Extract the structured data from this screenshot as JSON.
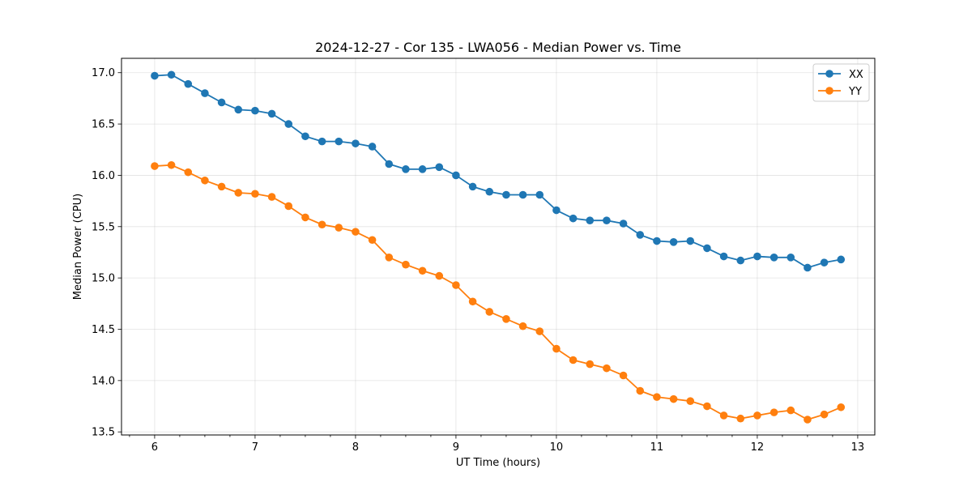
{
  "chart_data": {
    "type": "line",
    "title": "2024-12-27 - Cor 135 - LWA056 - Median Power vs. Time",
    "xlabel": "UT Time (hours)",
    "ylabel": "Median Power (CPU)",
    "xlim": [
      5.67,
      13.17
    ],
    "ylim": [
      13.47,
      17.14
    ],
    "xticks": [
      6,
      7,
      8,
      9,
      10,
      11,
      12,
      13
    ],
    "xtick_labels": [
      "6",
      "7",
      "8",
      "9",
      "10",
      "11",
      "12",
      "13"
    ],
    "xminor_step": 0.25,
    "yticks": [
      13.5,
      14.0,
      14.5,
      15.0,
      15.5,
      16.0,
      16.5,
      17.0
    ],
    "ytick_labels": [
      "13.5",
      "14.0",
      "14.5",
      "15.0",
      "15.5",
      "16.0",
      "16.5",
      "17.0"
    ],
    "grid": true,
    "legend_position": "top-right",
    "x": [
      6.0,
      6.1667,
      6.3333,
      6.5,
      6.6667,
      6.8333,
      7.0,
      7.1667,
      7.3333,
      7.5,
      7.6667,
      7.8333,
      8.0,
      8.1667,
      8.3333,
      8.5,
      8.6667,
      8.8333,
      9.0,
      9.1667,
      9.3333,
      9.5,
      9.6667,
      9.8333,
      10.0,
      10.1667,
      10.3333,
      10.5,
      10.6667,
      10.8333,
      11.0,
      11.1667,
      11.3333,
      11.5,
      11.6667,
      11.8333,
      12.0,
      12.1667,
      12.3333,
      12.5,
      12.6667,
      12.8333
    ],
    "series": [
      {
        "name": "XX",
        "color": "#1f77b4",
        "values": [
          16.97,
          16.98,
          16.89,
          16.8,
          16.71,
          16.64,
          16.63,
          16.6,
          16.5,
          16.38,
          16.33,
          16.33,
          16.31,
          16.28,
          16.11,
          16.06,
          16.06,
          16.08,
          16.0,
          15.89,
          15.84,
          15.81,
          15.81,
          15.81,
          15.66,
          15.58,
          15.56,
          15.56,
          15.53,
          15.42,
          15.36,
          15.35,
          15.36,
          15.29,
          15.21,
          15.17,
          15.21,
          15.2,
          15.2,
          15.1,
          15.15,
          15.18
        ]
      },
      {
        "name": "YY",
        "color": "#ff7f0e",
        "values": [
          16.09,
          16.1,
          16.03,
          15.95,
          15.89,
          15.83,
          15.82,
          15.79,
          15.7,
          15.59,
          15.52,
          15.49,
          15.45,
          15.37,
          15.2,
          15.13,
          15.07,
          15.02,
          14.93,
          14.77,
          14.67,
          14.6,
          14.53,
          14.48,
          14.31,
          14.2,
          14.16,
          14.12,
          14.05,
          13.9,
          13.84,
          13.82,
          13.8,
          13.75,
          13.66,
          13.63,
          13.66,
          13.69,
          13.71,
          13.62,
          13.67,
          13.74
        ]
      }
    ]
  }
}
